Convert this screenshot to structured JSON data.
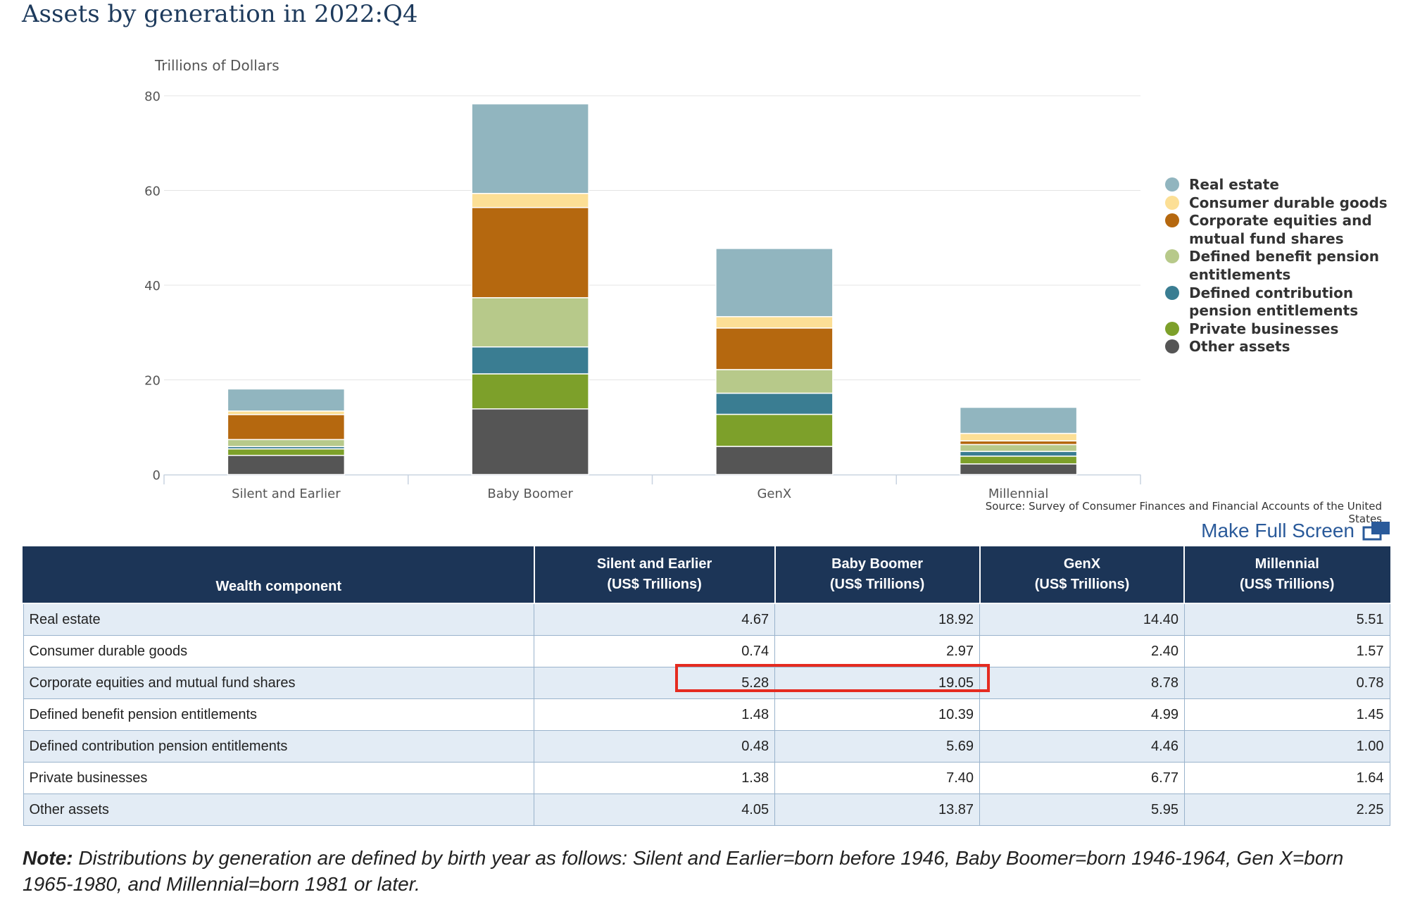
{
  "title": "Assets by generation in 2022:Q4",
  "source_text": "Source: Survey of Consumer Finances and Financial Accounts of the United States",
  "full_screen_label": "Make Full Screen",
  "full_screen_icon": "fullscreen-icon",
  "chart_data": {
    "type": "bar",
    "stacked": true,
    "ylabel": "Trillions of Dollars",
    "ylim": [
      0,
      80
    ],
    "yticks": [
      0,
      20,
      40,
      60,
      80
    ],
    "grid": true,
    "legend_position": "right",
    "categories": [
      "Silent and Earlier",
      "Baby Boomer",
      "GenX",
      "Millennial"
    ],
    "series": [
      {
        "name": "Other assets",
        "color": "#555555",
        "values": [
          4.05,
          13.87,
          5.95,
          2.25
        ]
      },
      {
        "name": "Private businesses",
        "color": "#7da02a",
        "values": [
          1.38,
          7.4,
          6.77,
          1.64
        ]
      },
      {
        "name": "Defined contribution pension entitlements",
        "color": "#3a7d92",
        "values": [
          0.48,
          5.69,
          4.46,
          1.0
        ]
      },
      {
        "name": "Defined benefit pension entitlements",
        "color": "#b7c98a",
        "values": [
          1.48,
          10.39,
          4.99,
          1.45
        ]
      },
      {
        "name": "Corporate equities and mutual fund shares",
        "color": "#b5680f",
        "values": [
          5.28,
          19.05,
          8.78,
          0.78
        ]
      },
      {
        "name": "Consumer durable goods",
        "color": "#fcdf95",
        "values": [
          0.74,
          2.97,
          2.4,
          1.57
        ]
      },
      {
        "name": "Real estate",
        "color": "#91b5bf",
        "values": [
          4.67,
          18.92,
          14.4,
          5.51
        ]
      }
    ],
    "legend_order": [
      "Real estate",
      "Consumer durable goods",
      "Corporate equities and mutual fund shares",
      "Defined benefit pension entitlements",
      "Defined contribution pension entitlements",
      "Private businesses",
      "Other assets"
    ]
  },
  "table": {
    "headers": [
      {
        "line1": "Wealth component",
        "line2": ""
      },
      {
        "line1": "Silent and Earlier",
        "line2": "(US$ Trillions)"
      },
      {
        "line1": "Baby Boomer",
        "line2": "(US$ Trillions)"
      },
      {
        "line1": "GenX",
        "line2": "(US$ Trillions)"
      },
      {
        "line1": "Millennial",
        "line2": "(US$ Trillions)"
      }
    ],
    "rows": [
      [
        "Real estate",
        "4.67",
        "18.92",
        "14.40",
        "5.51"
      ],
      [
        "Consumer durable goods",
        "0.74",
        "2.97",
        "2.40",
        "1.57"
      ],
      [
        "Corporate equities and mutual fund shares",
        "5.28",
        "19.05",
        "8.78",
        "0.78"
      ],
      [
        "Defined benefit pension entitlements",
        "1.48",
        "10.39",
        "4.99",
        "1.45"
      ],
      [
        "Defined contribution pension entitlements",
        "0.48",
        "5.69",
        "4.46",
        "1.00"
      ],
      [
        "Private businesses",
        "1.38",
        "7.40",
        "6.77",
        "1.64"
      ],
      [
        "Other assets",
        "4.05",
        "13.87",
        "5.95",
        "2.25"
      ]
    ],
    "highlight_color": "#e52b20"
  },
  "note": {
    "label": "Note:",
    "text": " Distributions by generation are defined by birth year as follows: Silent and Earlier=born before 1946, Baby Boomer=born 1946-1964, Gen X=born 1965-1980, and Millennial=born 1981 or later."
  }
}
